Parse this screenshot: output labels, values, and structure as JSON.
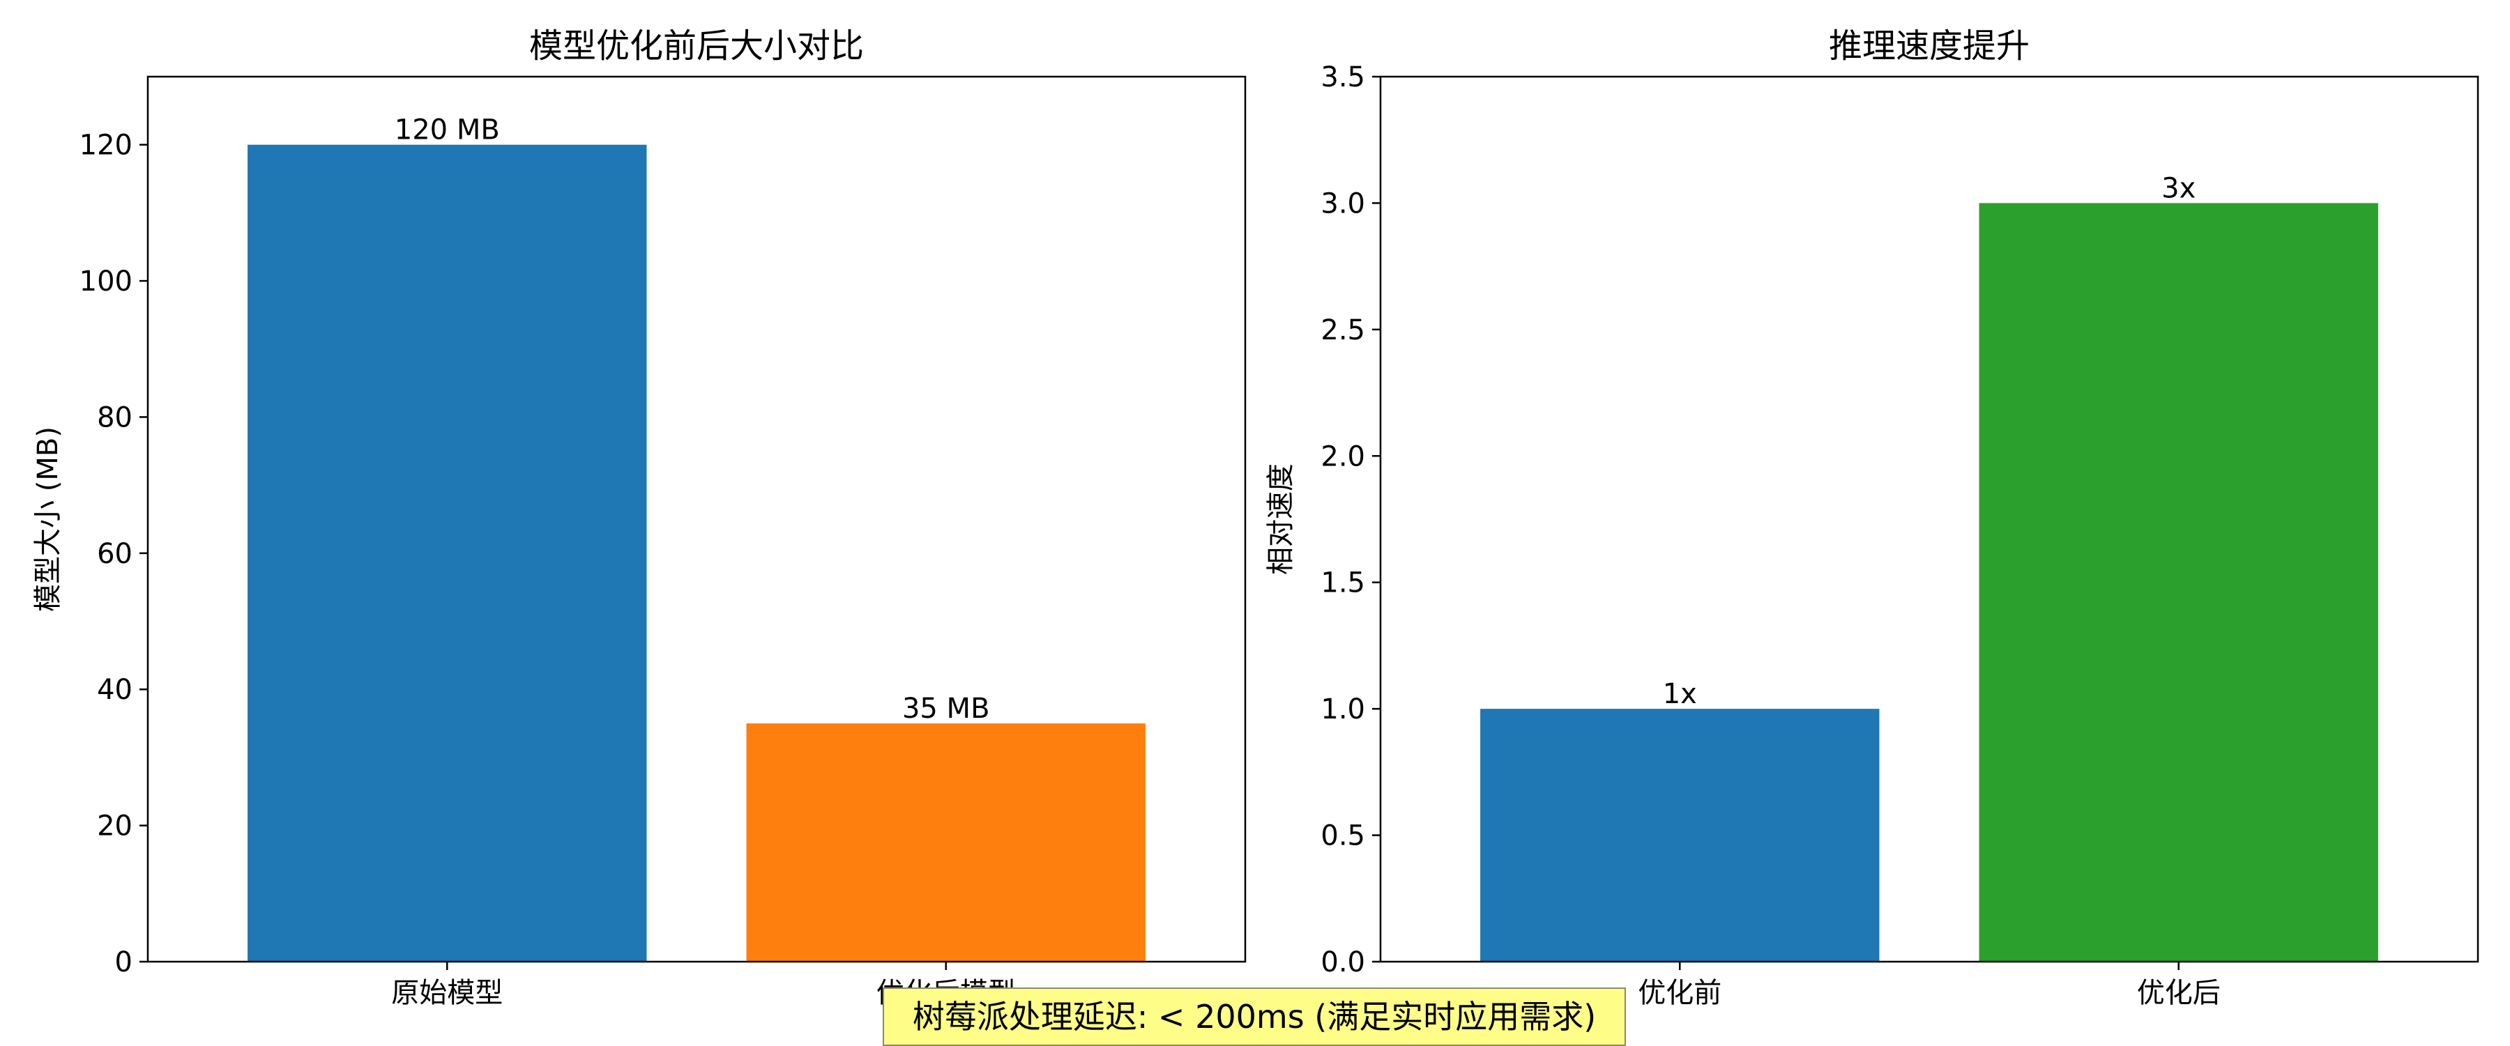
{
  "chart_data": [
    {
      "type": "bar",
      "title": "模型优化前后大小对比",
      "xlabel": "",
      "ylabel": "模型大小 (MB)",
      "categories": [
        "原始模型",
        "优化后模型"
      ],
      "values": [
        120,
        35
      ],
      "bar_labels": [
        "120 MB",
        "35 MB"
      ],
      "colors": [
        "#1f77b4",
        "#ff7f0e"
      ],
      "ylim": [
        0,
        130
      ],
      "yticks": [
        0,
        20,
        40,
        60,
        80,
        100,
        120
      ],
      "ytick_labels": [
        "0",
        "20",
        "40",
        "60",
        "80",
        "100",
        "120"
      ],
      "grid": false
    },
    {
      "type": "bar",
      "title": "推理速度提升",
      "xlabel": "",
      "ylabel": "相对速度",
      "categories": [
        "优化前",
        "优化后"
      ],
      "values": [
        1,
        3
      ],
      "bar_labels": [
        "1x",
        "3x"
      ],
      "colors": [
        "#1f77b4",
        "#2ca02c"
      ],
      "ylim": [
        0,
        3.5
      ],
      "yticks": [
        0,
        0.5,
        1,
        1.5,
        2,
        2.5,
        3,
        3.5
      ],
      "ytick_labels": [
        "0.0",
        "0.5",
        "1.0",
        "1.5",
        "2.0",
        "2.5",
        "3.0",
        "3.5"
      ],
      "grid": false
    }
  ],
  "footnote": {
    "text": "树莓派处理延迟: < 200ms (满足实时应用需求)",
    "background": "#fdfd88"
  }
}
